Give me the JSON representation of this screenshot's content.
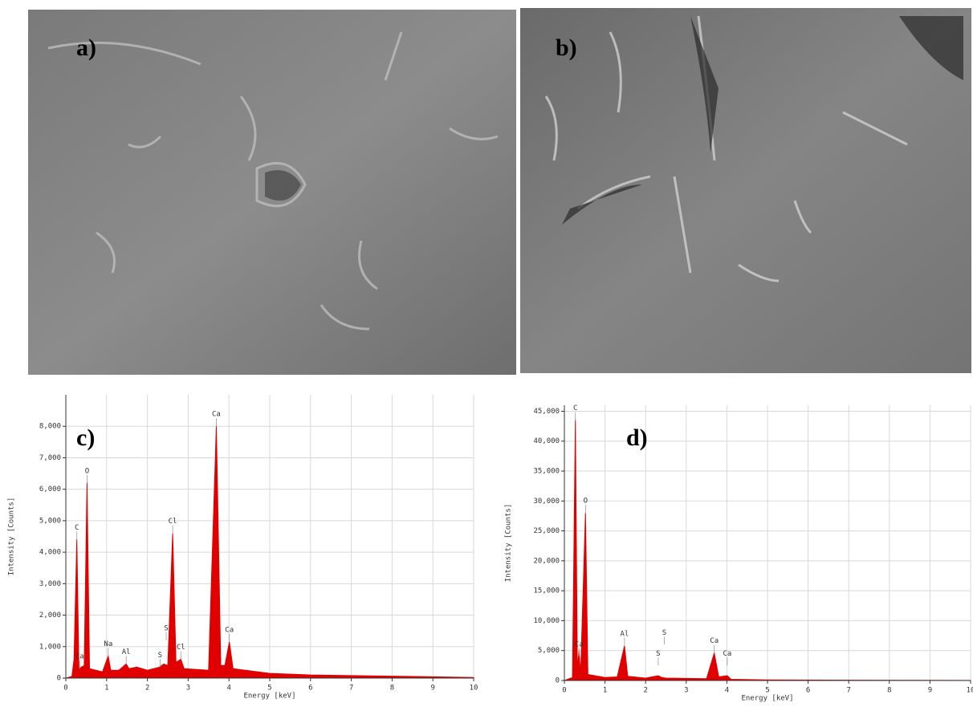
{
  "images": [
    {
      "label": "a)"
    },
    {
      "label": "b)"
    }
  ],
  "chart_data": [
    {
      "type": "line",
      "panel_label": "c)",
      "x_label": "Energy [keV]",
      "y_label": "Intensity [Counts]",
      "color": "#e00000",
      "grid": true,
      "xlim": [
        0,
        10
      ],
      "ylim": [
        0,
        9000
      ],
      "xticks": [
        0,
        1,
        2,
        3,
        4,
        5,
        6,
        7,
        8,
        9,
        10
      ],
      "yticks": [
        0,
        {
          "value": 1000,
          "label": "1,000"
        },
        {
          "value": 2000,
          "label": "2,000"
        },
        {
          "value": 3000,
          "label": "3,000"
        },
        {
          "value": 4000,
          "label": "4,000"
        },
        {
          "value": 5000,
          "label": "5,000"
        },
        {
          "value": 6000,
          "label": "6,000"
        },
        {
          "value": 7000,
          "label": "7,000"
        },
        {
          "value": 8000,
          "label": "8,000"
        }
      ],
      "x": [
        0,
        0.15,
        0.2,
        0.27,
        0.32,
        0.45,
        0.52,
        0.58,
        0.9,
        1.04,
        1.1,
        1.3,
        1.48,
        1.55,
        1.74,
        2.0,
        2.3,
        2.4,
        2.5,
        2.62,
        2.7,
        2.82,
        2.9,
        3.5,
        3.69,
        3.8,
        3.9,
        4.01,
        4.1,
        5,
        6,
        7,
        8,
        9,
        10
      ],
      "values": [
        0,
        50,
        600,
        4400,
        300,
        400,
        6200,
        300,
        200,
        700,
        250,
        250,
        450,
        300,
        350,
        250,
        350,
        450,
        400,
        4600,
        500,
        600,
        300,
        250,
        8000,
        400,
        400,
        1150,
        300,
        150,
        100,
        80,
        60,
        40,
        20
      ],
      "annotations": [
        {
          "text": "C",
          "x": 0.27,
          "y": 4400
        },
        {
          "text": "Ca",
          "x": 0.34,
          "y": 300
        },
        {
          "text": "O",
          "x": 0.52,
          "y": 6200
        },
        {
          "text": "Na",
          "x": 1.04,
          "y": 700
        },
        {
          "text": "Al",
          "x": 1.48,
          "y": 450
        },
        {
          "text": "S",
          "x": 2.31,
          "y": 350
        },
        {
          "text": "S",
          "x": 2.46,
          "y": 1200
        },
        {
          "text": "Cl",
          "x": 2.62,
          "y": 4600
        },
        {
          "text": "Cl",
          "x": 2.82,
          "y": 600
        },
        {
          "text": "Ca",
          "x": 3.69,
          "y": 8000
        },
        {
          "text": "Ca",
          "x": 4.01,
          "y": 1150
        }
      ]
    },
    {
      "type": "line",
      "panel_label": "d)",
      "x_label": "Energy [keV]",
      "y_label": "Intensity [Counts]",
      "color": "#e00000",
      "grid": true,
      "xlim": [
        0,
        10
      ],
      "ylim": [
        0,
        46000
      ],
      "xticks": [
        0,
        1,
        2,
        3,
        4,
        5,
        6,
        7,
        8,
        9,
        10
      ],
      "yticks": [
        0,
        {
          "value": 5000,
          "label": "5,000"
        },
        {
          "value": 10000,
          "label": "10,000"
        },
        {
          "value": 15000,
          "label": "15,000"
        },
        {
          "value": 20000,
          "label": "20,000"
        },
        {
          "value": 25000,
          "label": "25,000"
        },
        {
          "value": 30000,
          "label": "30,000"
        },
        {
          "value": 35000,
          "label": "35,000"
        },
        {
          "value": 40000,
          "label": "40,000"
        },
        {
          "value": 45000,
          "label": "45,000"
        }
      ],
      "x": [
        0,
        0.2,
        0.27,
        0.32,
        0.36,
        0.4,
        0.52,
        0.58,
        1.0,
        1.3,
        1.48,
        1.56,
        2.0,
        2.31,
        2.4,
        2.5,
        3.5,
        3.69,
        3.8,
        4.01,
        4.1,
        5,
        7,
        10
      ],
      "values": [
        0,
        500,
        43500,
        2000,
        5000,
        1000,
        28000,
        1000,
        500,
        600,
        5800,
        700,
        400,
        800,
        500,
        400,
        300,
        4600,
        600,
        800,
        200,
        100,
        50,
        20
      ],
      "annotations": [
        {
          "text": "C",
          "x": 0.27,
          "y": 43500
        },
        {
          "text": "Ca",
          "x": 0.36,
          "y": 4000
        },
        {
          "text": "O",
          "x": 0.52,
          "y": 28000
        },
        {
          "text": "Al",
          "x": 1.48,
          "y": 5800
        },
        {
          "text": "S",
          "x": 2.31,
          "y": 2500
        },
        {
          "text": "S",
          "x": 2.46,
          "y": 6000
        },
        {
          "text": "Ca",
          "x": 3.69,
          "y": 4600
        },
        {
          "text": "Ca",
          "x": 4.01,
          "y": 2500
        }
      ]
    }
  ]
}
